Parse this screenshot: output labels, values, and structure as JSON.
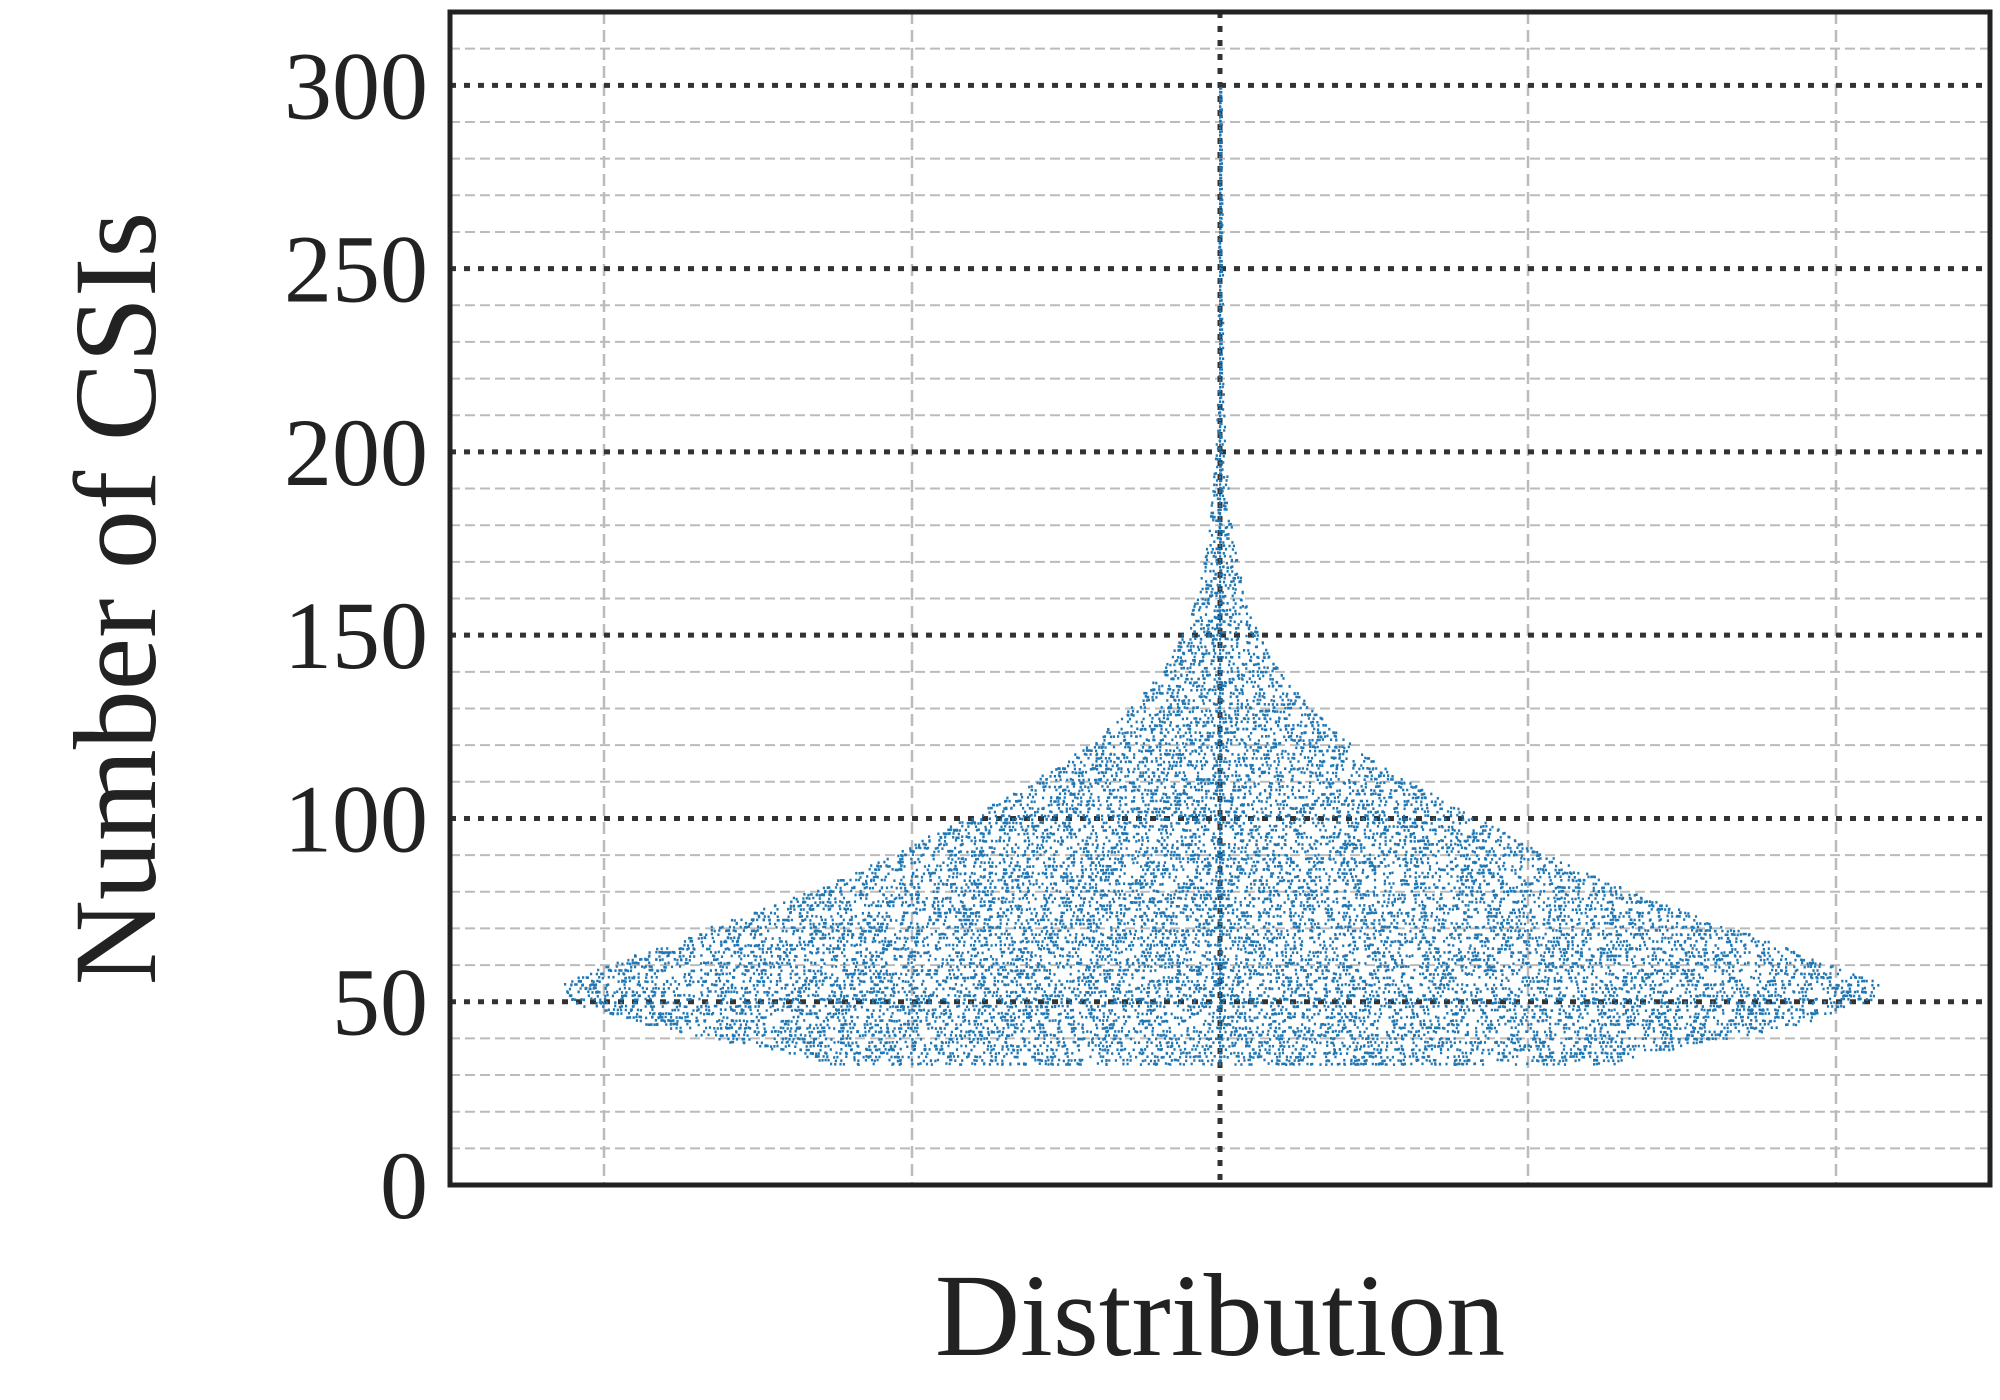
{
  "chart_data": {
    "type": "violin",
    "title": "",
    "xlabel": "Distribution",
    "ylabel": "Number of CSIs",
    "ylim": [
      0,
      320
    ],
    "yticks": [
      0,
      50,
      100,
      150,
      200,
      250,
      300
    ],
    "y_minor_step": 10,
    "grid": true,
    "legend": "none",
    "colors": {
      "points": "#1f77b4",
      "frame": "#222222",
      "major_grid": "#333333",
      "minor_grid": "#bbbbbb"
    },
    "density_profile": {
      "y": [
        32,
        35,
        40,
        45,
        50,
        55,
        60,
        70,
        80,
        90,
        100,
        110,
        120,
        130,
        140,
        150,
        160,
        170,
        180,
        190,
        200,
        210,
        230,
        250,
        270,
        300
      ],
      "relative_width": [
        0.56,
        0.6,
        0.74,
        0.86,
        0.94,
        0.95,
        0.88,
        0.74,
        0.59,
        0.47,
        0.37,
        0.27,
        0.19,
        0.13,
        0.085,
        0.055,
        0.035,
        0.024,
        0.016,
        0.011,
        0.008,
        0.005,
        0.004,
        0.003,
        0.002,
        0.001
      ]
    }
  }
}
